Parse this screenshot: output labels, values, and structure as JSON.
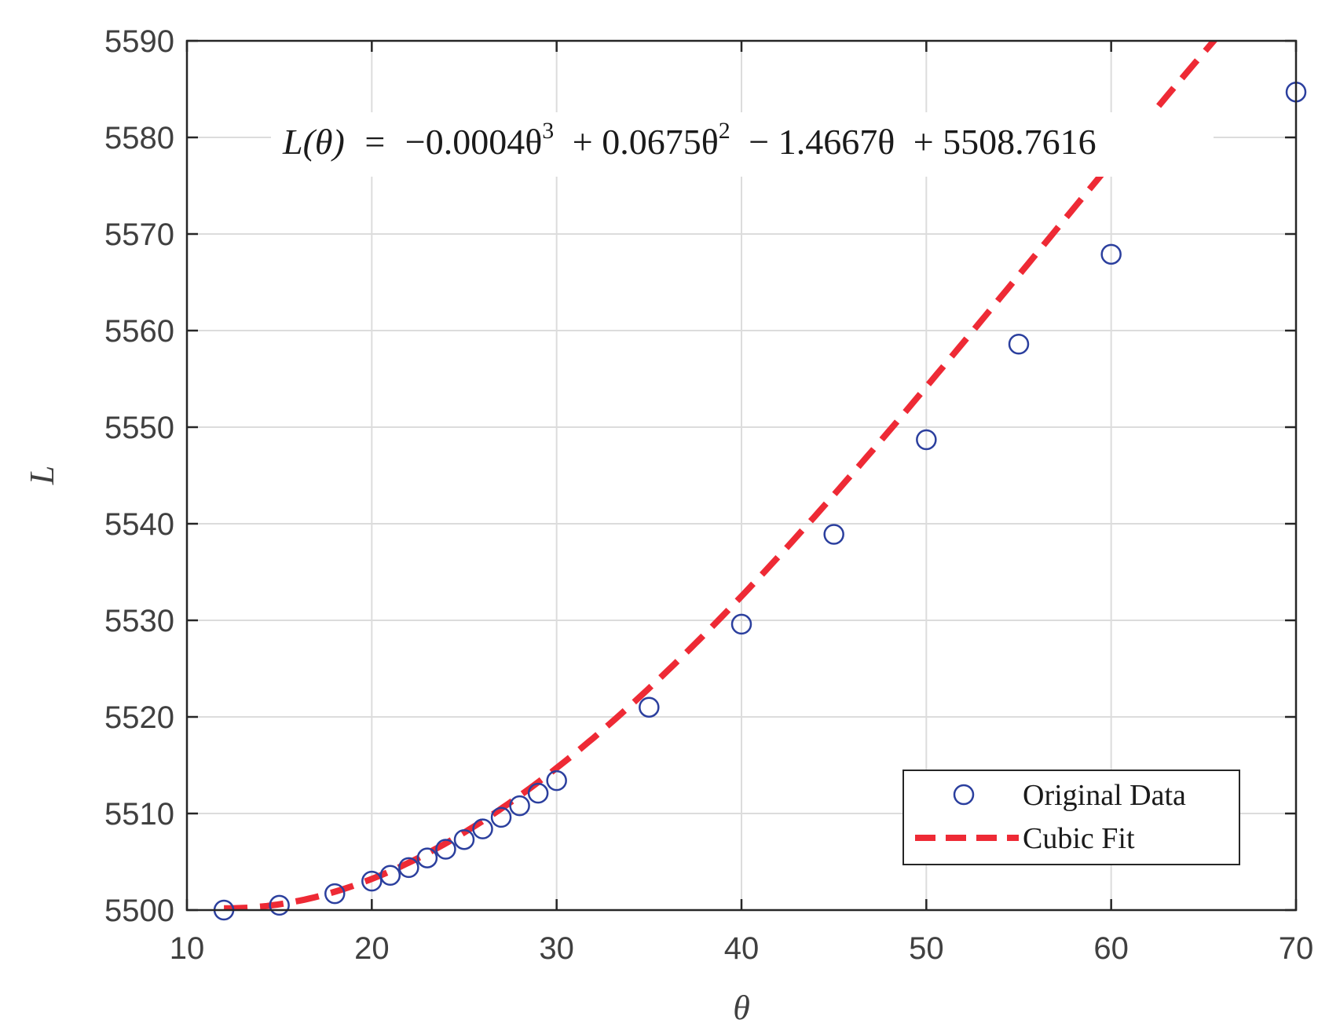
{
  "chart_data": {
    "type": "scatter",
    "xlabel": "θ",
    "ylabel": "L",
    "xlim": [
      10,
      70
    ],
    "ylim": [
      5500,
      5590
    ],
    "xticks": [
      10,
      20,
      30,
      40,
      50,
      60,
      70
    ],
    "yticks": [
      5500,
      5510,
      5520,
      5530,
      5540,
      5550,
      5560,
      5570,
      5580,
      5590
    ],
    "grid": true,
    "legend_position": "bottom-right",
    "equation": {
      "lhs": "L(θ)",
      "eq": "=",
      "terms": [
        {
          "text": "−0.0004θ",
          "sup": "3"
        },
        {
          "text": "+ 0.0675θ",
          "sup": "2"
        },
        {
          "text": "− 1.4667θ",
          "sup": ""
        },
        {
          "text": "+ 5508.7616",
          "sup": ""
        }
      ]
    },
    "fit_coefficients": {
      "a3": -0.0004,
      "a2": 0.0675,
      "a1": -1.4667,
      "a0": 5508.7616
    },
    "series": [
      {
        "name": "Original Data",
        "kind": "markers",
        "color": "#2b3f9e",
        "x": [
          12,
          15,
          18,
          20,
          21,
          22,
          23,
          24,
          25,
          26,
          27,
          28,
          29,
          30,
          35,
          40,
          45,
          50,
          55,
          60,
          70
        ],
        "y": [
          5500.0,
          5500.5,
          5501.7,
          5503.0,
          5503.6,
          5504.4,
          5505.4,
          5506.3,
          5507.3,
          5508.4,
          5509.6,
          5510.8,
          5512.1,
          5513.4,
          5521.0,
          5529.6,
          5538.9,
          5548.7,
          5558.6,
          5567.9,
          5584.7
        ]
      },
      {
        "name": "Cubic Fit",
        "kind": "dashed-line",
        "color": "#ee2a35",
        "x_range": [
          12,
          70
        ]
      }
    ]
  }
}
